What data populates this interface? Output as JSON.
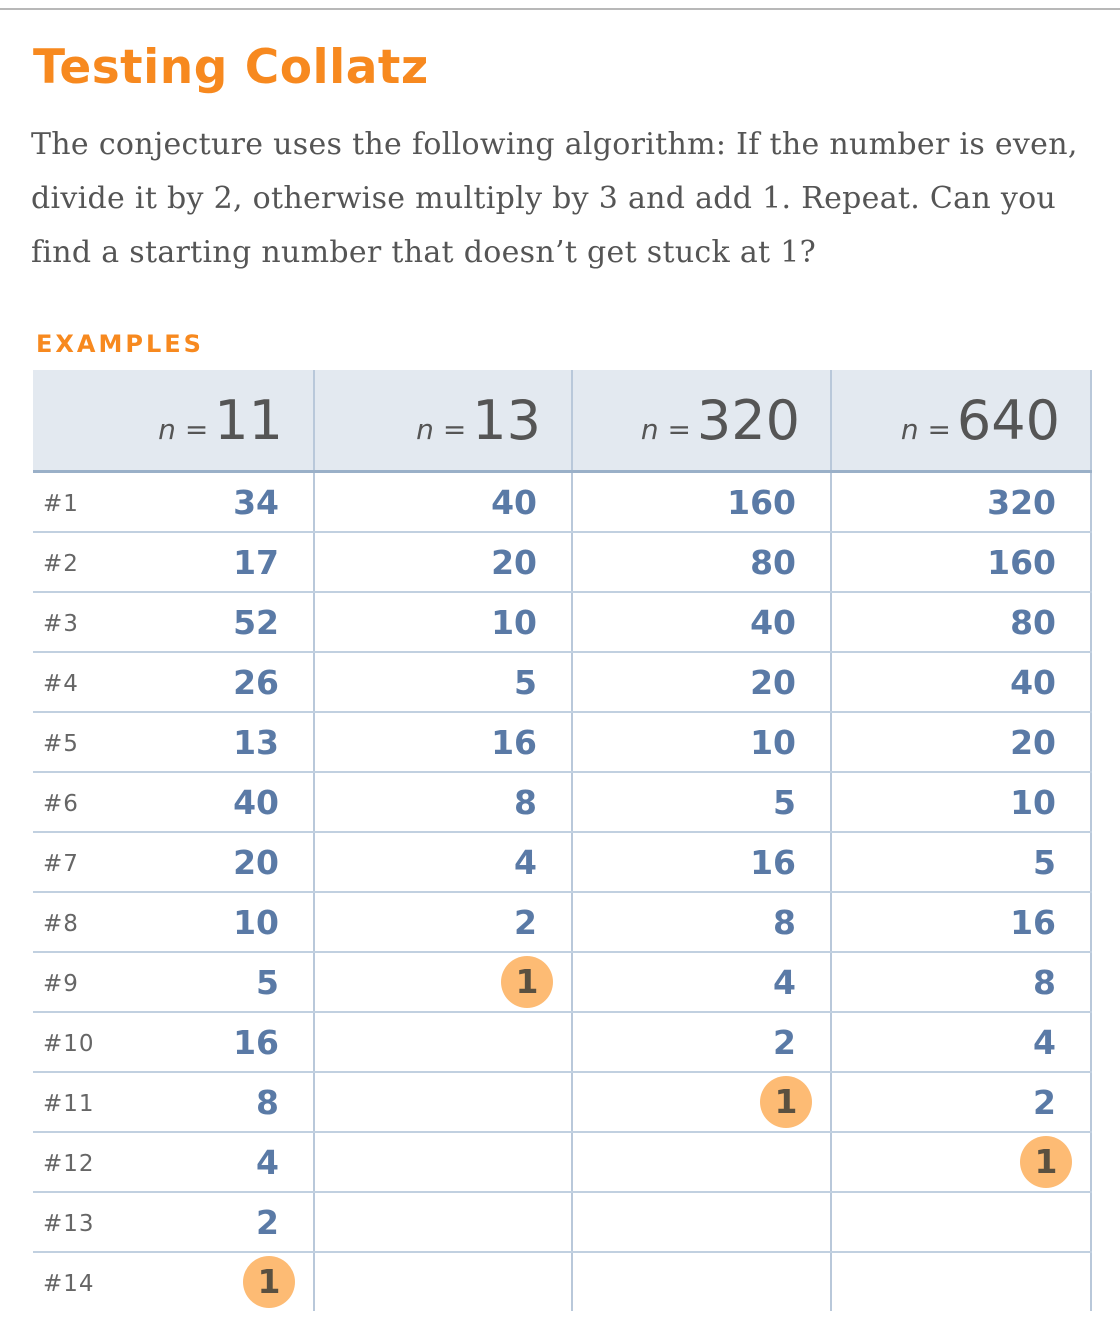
{
  "title": "Testing Collatz",
  "intro": "The conjecture uses the following algorithm: If the number is even, divide it by 2, otherwise multiply by 3 and add 1. Repeat. Can you find a starting number that doesn’t get stuck at 1?",
  "examples_label": "EXAMPLES",
  "colors": {
    "accent": "#f7891f",
    "value": "#5a7aa6",
    "highlight": "#fdbb74",
    "header_bg": "#e3e9f0"
  },
  "table": {
    "n_label": "n =",
    "columns": [
      "11",
      "13",
      "320",
      "640"
    ],
    "row_labels": [
      "#1",
      "#2",
      "#3",
      "#4",
      "#5",
      "#6",
      "#7",
      "#8",
      "#9",
      "#10",
      "#11",
      "#12",
      "#13",
      "#14"
    ],
    "values": [
      [
        "34",
        "17",
        "52",
        "26",
        "13",
        "40",
        "20",
        "10",
        "5",
        "16",
        "8",
        "4",
        "2",
        "1"
      ],
      [
        "40",
        "20",
        "10",
        "5",
        "16",
        "8",
        "4",
        "2",
        "1"
      ],
      [
        "160",
        "80",
        "40",
        "20",
        "10",
        "5",
        "16",
        "8",
        "4",
        "2",
        "1"
      ],
      [
        "320",
        "160",
        "80",
        "40",
        "20",
        "10",
        "5",
        "16",
        "8",
        "4",
        "2",
        "1"
      ]
    ]
  }
}
